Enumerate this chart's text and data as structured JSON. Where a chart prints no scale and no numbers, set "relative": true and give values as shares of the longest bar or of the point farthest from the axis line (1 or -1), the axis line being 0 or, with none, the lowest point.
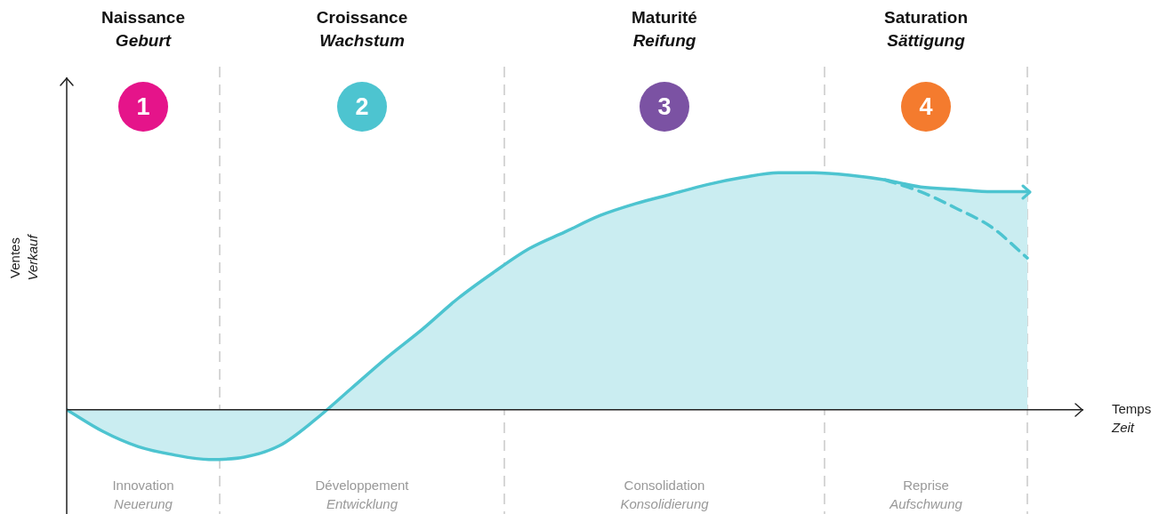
{
  "chart_data": {
    "type": "area",
    "relative": true,
    "categories": [
      null,
      null,
      null,
      null,
      null,
      null,
      null,
      null,
      null,
      null,
      null,
      null,
      null,
      null,
      null,
      null,
      null,
      null,
      null,
      null,
      null,
      null,
      null,
      null,
      null,
      null,
      null,
      null
    ],
    "xlabel": "Temps\nZeit",
    "ylabel": "Ventes\nVerkauf",
    "legend": false,
    "tick_labels": false,
    "series": [
      {
        "color": "#4dc4d0",
        "values": [
          0,
          -0.09,
          -0.155,
          -0.19,
          -0.21,
          -0.2,
          -0.15,
          -0.04,
          0.09,
          0.22,
          0.34,
          0.47,
          0.58,
          0.68,
          0.75,
          0.82,
          0.87,
          0.91,
          0.95,
          0.98,
          1.0,
          1.0,
          0.99,
          0.97,
          0.94,
          0.93,
          0.92,
          0.92
        ]
      },
      {
        "type": "line",
        "color": "#4dc4d0",
        "line_style": "dashed",
        "values": [
          null,
          null,
          null,
          null,
          null,
          null,
          null,
          null,
          null,
          null,
          null,
          null,
          null,
          null,
          null,
          null,
          null,
          null,
          null,
          null,
          null,
          null,
          null,
          0.97,
          0.92,
          0.85,
          0.77,
          0.64
        ]
      }
    ],
    "annotations": [
      "Naissance",
      "Geburt",
      "1",
      "Innovation",
      "Neuerung",
      "Croissance",
      "Wachstum",
      "2",
      "Développement",
      "Entwicklung",
      "Maturité",
      "Reifung",
      "3",
      "Consolidation",
      "Konsolidierung",
      "Saturation",
      "Sättigung",
      "4",
      "Reprise",
      "Aufschwung"
    ]
  }
}
